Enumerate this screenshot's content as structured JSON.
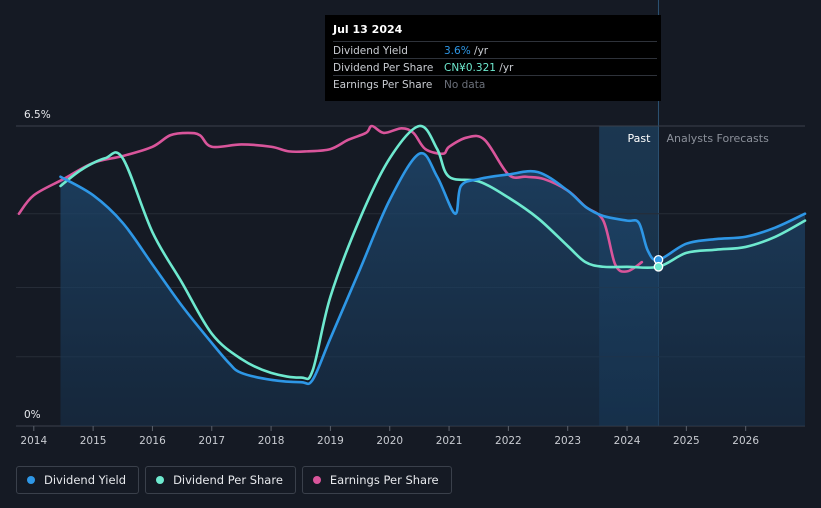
{
  "chart_data": {
    "type": "line",
    "x_range": [
      2013.7,
      2027.0
    ],
    "y_range_pct": [
      0,
      6.5
    ],
    "y_tick_labels": [
      "6.5%",
      "0%"
    ],
    "x_ticks": [
      "2014",
      "2015",
      "2016",
      "2017",
      "2018",
      "2019",
      "2020",
      "2021",
      "2022",
      "2023",
      "2024",
      "2025",
      "2026"
    ],
    "past_label": "Past",
    "forecast_label": "Analysts Forecasts",
    "past_forecast_divider_year": 2024.53,
    "past_region_start_year": 2023.53,
    "series": [
      {
        "name": "Dividend Yield",
        "color": "#2e97e6",
        "points": [
          [
            2014.45,
            5.4
          ],
          [
            2015.0,
            5.0
          ],
          [
            2015.5,
            4.4
          ],
          [
            2016.0,
            3.5
          ],
          [
            2016.5,
            2.6
          ],
          [
            2017.0,
            1.8
          ],
          [
            2017.3,
            1.35
          ],
          [
            2017.5,
            1.15
          ],
          [
            2018.0,
            1.0
          ],
          [
            2018.5,
            0.95
          ],
          [
            2018.7,
            1.0
          ],
          [
            2019.0,
            1.9
          ],
          [
            2019.5,
            3.4
          ],
          [
            2020.0,
            4.9
          ],
          [
            2020.5,
            5.9
          ],
          [
            2020.8,
            5.4
          ],
          [
            2021.1,
            4.6
          ],
          [
            2021.2,
            5.2
          ],
          [
            2021.5,
            5.35
          ],
          [
            2022.0,
            5.45
          ],
          [
            2022.5,
            5.5
          ],
          [
            2023.0,
            5.1
          ],
          [
            2023.3,
            4.75
          ],
          [
            2023.6,
            4.55
          ],
          [
            2024.0,
            4.45
          ],
          [
            2024.2,
            4.4
          ],
          [
            2024.35,
            3.8
          ],
          [
            2024.53,
            3.6
          ],
          [
            2025.0,
            3.95
          ],
          [
            2025.5,
            4.05
          ],
          [
            2026.0,
            4.1
          ],
          [
            2026.5,
            4.3
          ],
          [
            2027.0,
            4.6
          ]
        ]
      },
      {
        "name": "Dividend Per Share",
        "color": "#6ee9cf",
        "points": [
          [
            2014.45,
            5.2
          ],
          [
            2014.8,
            5.55
          ],
          [
            2015.2,
            5.8
          ],
          [
            2015.5,
            5.8
          ],
          [
            2016.0,
            4.2
          ],
          [
            2016.5,
            3.1
          ],
          [
            2017.0,
            2.0
          ],
          [
            2017.5,
            1.45
          ],
          [
            2018.0,
            1.15
          ],
          [
            2018.5,
            1.05
          ],
          [
            2018.7,
            1.2
          ],
          [
            2019.0,
            2.8
          ],
          [
            2019.5,
            4.5
          ],
          [
            2020.0,
            5.8
          ],
          [
            2020.5,
            6.5
          ],
          [
            2020.8,
            6.0
          ],
          [
            2021.0,
            5.4
          ],
          [
            2021.5,
            5.3
          ],
          [
            2022.0,
            4.95
          ],
          [
            2022.5,
            4.5
          ],
          [
            2023.0,
            3.9
          ],
          [
            2023.3,
            3.55
          ],
          [
            2023.6,
            3.45
          ],
          [
            2024.0,
            3.45
          ],
          [
            2024.53,
            3.45
          ],
          [
            2025.0,
            3.75
          ],
          [
            2025.5,
            3.82
          ],
          [
            2026.0,
            3.88
          ],
          [
            2026.5,
            4.1
          ],
          [
            2027.0,
            4.45
          ]
        ]
      },
      {
        "name": "Earnings Per Share",
        "color": "#d9559b",
        "points": [
          [
            2013.75,
            4.6
          ],
          [
            2014.0,
            5.0
          ],
          [
            2014.5,
            5.35
          ],
          [
            2015.0,
            5.7
          ],
          [
            2015.5,
            5.85
          ],
          [
            2016.0,
            6.05
          ],
          [
            2016.3,
            6.3
          ],
          [
            2016.6,
            6.35
          ],
          [
            2016.8,
            6.3
          ],
          [
            2017.0,
            6.05
          ],
          [
            2017.5,
            6.1
          ],
          [
            2018.0,
            6.05
          ],
          [
            2018.3,
            5.95
          ],
          [
            2018.6,
            5.95
          ],
          [
            2019.0,
            6.0
          ],
          [
            2019.3,
            6.2
          ],
          [
            2019.6,
            6.35
          ],
          [
            2019.7,
            6.5
          ],
          [
            2019.9,
            6.35
          ],
          [
            2020.2,
            6.45
          ],
          [
            2020.4,
            6.35
          ],
          [
            2020.6,
            6.0
          ],
          [
            2020.9,
            5.9
          ],
          [
            2021.0,
            6.05
          ],
          [
            2021.3,
            6.25
          ],
          [
            2021.6,
            6.2
          ],
          [
            2022.0,
            5.45
          ],
          [
            2022.3,
            5.4
          ],
          [
            2022.6,
            5.35
          ],
          [
            2023.0,
            5.1
          ],
          [
            2023.3,
            4.75
          ],
          [
            2023.6,
            4.45
          ],
          [
            2023.8,
            3.5
          ],
          [
            2024.0,
            3.35
          ],
          [
            2024.25,
            3.55
          ]
        ]
      }
    ],
    "markers": [
      {
        "series": "Dividend Yield",
        "year": 2024.53,
        "value": 3.6
      },
      {
        "series": "Dividend Per Share",
        "year": 2024.53,
        "value": 3.45
      }
    ],
    "grid": true,
    "legend_position": "bottom-left"
  },
  "tooltip": {
    "date": "Jul 13 2024",
    "rows": [
      {
        "label": "Dividend Yield",
        "value": "3.6%",
        "unit": " /yr",
        "color": "#2e97e6"
      },
      {
        "label": "Dividend Per Share",
        "value": "CN¥0.321",
        "unit": " /yr",
        "color": "#6ee9cf"
      },
      {
        "label": "Earnings Per Share",
        "value": "No data",
        "unit": "",
        "color": "#6b707a"
      }
    ]
  },
  "legend": [
    {
      "label": "Dividend Yield",
      "color": "#2e97e6"
    },
    {
      "label": "Dividend Per Share",
      "color": "#6ee9cf"
    },
    {
      "label": "Earnings Per Share",
      "color": "#d9559b"
    }
  ]
}
